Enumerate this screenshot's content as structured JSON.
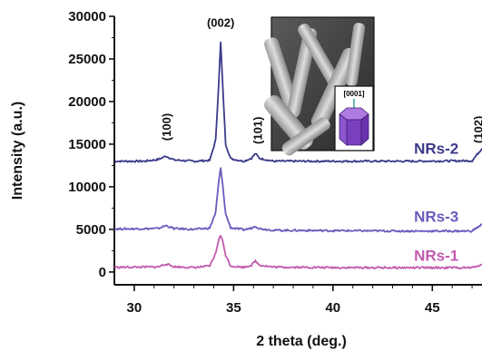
{
  "chart_data": {
    "type": "line",
    "title": "",
    "xlabel": "2 theta (deg.)",
    "ylabel": "Intensity (a.u.)",
    "xlim": [
      29,
      47.5
    ],
    "ylim": [
      -1500,
      30000
    ],
    "x_ticks": [
      30,
      35,
      40,
      45
    ],
    "x_tick_labels": [
      "30",
      "35",
      "40",
      "45"
    ],
    "y_ticks": [
      0,
      5000,
      10000,
      15000,
      20000,
      25000,
      30000
    ],
    "y_tick_labels": [
      "0",
      "5000",
      "10000",
      "15000",
      "20000",
      "25000",
      "30000"
    ],
    "grid": false,
    "legend": "none",
    "series": [
      {
        "name": "NRs-2",
        "color": "#3b3a8a",
        "baseline": 13000,
        "label_at": [
          45.2,
          13900
        ],
        "points": [
          [
            29.0,
            13000
          ],
          [
            30.5,
            13000
          ],
          [
            31.2,
            13200
          ],
          [
            31.6,
            13600
          ],
          [
            32.0,
            13150
          ],
          [
            33.0,
            13000
          ],
          [
            33.8,
            13100
          ],
          [
            34.1,
            15500
          ],
          [
            34.25,
            22000
          ],
          [
            34.35,
            26900
          ],
          [
            34.45,
            22000
          ],
          [
            34.6,
            15000
          ],
          [
            34.85,
            13300
          ],
          [
            35.5,
            13000
          ],
          [
            35.9,
            13350
          ],
          [
            36.1,
            13900
          ],
          [
            36.3,
            13350
          ],
          [
            37.0,
            13000
          ],
          [
            40.0,
            13000
          ],
          [
            44.0,
            13000
          ],
          [
            47.0,
            13050
          ],
          [
            47.5,
            14500
          ]
        ]
      },
      {
        "name": "NRs-3",
        "color": "#6a5bbd",
        "baseline": 5000,
        "label_at": [
          45.2,
          5900
        ],
        "points": [
          [
            29.0,
            5050
          ],
          [
            31.2,
            5100
          ],
          [
            31.6,
            5450
          ],
          [
            32.0,
            5100
          ],
          [
            33.0,
            5000
          ],
          [
            33.8,
            5150
          ],
          [
            34.1,
            7000
          ],
          [
            34.25,
            10500
          ],
          [
            34.35,
            12200
          ],
          [
            34.45,
            10200
          ],
          [
            34.6,
            6800
          ],
          [
            34.85,
            5200
          ],
          [
            35.5,
            4950
          ],
          [
            35.9,
            5150
          ],
          [
            36.1,
            5400
          ],
          [
            36.3,
            5100
          ],
          [
            37.0,
            4900
          ],
          [
            40.0,
            4850
          ],
          [
            44.0,
            4800
          ],
          [
            47.0,
            4800
          ],
          [
            47.5,
            5600
          ]
        ]
      },
      {
        "name": "NRs-1",
        "color": "#c25aad",
        "baseline": 500,
        "label_at": [
          45.2,
          1300
        ],
        "points": [
          [
            29.0,
            550
          ],
          [
            31.2,
            600
          ],
          [
            31.6,
            950
          ],
          [
            32.0,
            620
          ],
          [
            33.0,
            520
          ],
          [
            33.8,
            700
          ],
          [
            34.1,
            2200
          ],
          [
            34.25,
            3800
          ],
          [
            34.35,
            4300
          ],
          [
            34.45,
            3600
          ],
          [
            34.6,
            2000
          ],
          [
            34.85,
            700
          ],
          [
            35.5,
            560
          ],
          [
            35.9,
            800
          ],
          [
            36.1,
            1300
          ],
          [
            36.3,
            820
          ],
          [
            37.0,
            580
          ],
          [
            40.0,
            520
          ],
          [
            44.0,
            500
          ],
          [
            47.0,
            500
          ],
          [
            47.5,
            900
          ]
        ]
      }
    ],
    "annotations": [
      {
        "text": "(002)",
        "x": 34.35,
        "y": 28800,
        "rotate": false
      },
      {
        "text": "(100)",
        "x": 31.6,
        "y": 15400,
        "rotate": true
      },
      {
        "text": "(101)",
        "x": 36.2,
        "y": 15000,
        "rotate": true
      },
      {
        "text": "(102)",
        "x": 47.3,
        "y": 15100,
        "rotate": true
      }
    ],
    "inset": {
      "description_label": "[0001]",
      "hex_color": "#8a4fc4"
    }
  }
}
